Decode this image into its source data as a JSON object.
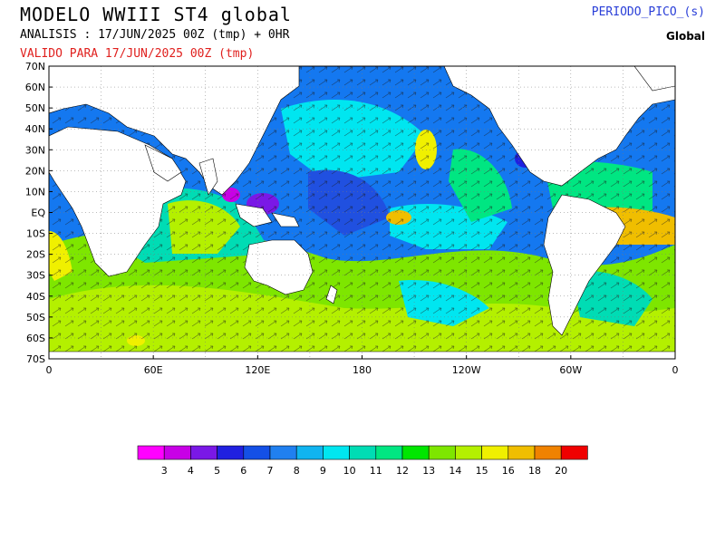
{
  "header": {
    "title": "MODELO WWIII ST4 global",
    "analysis": "ANALISIS : 17/JUN/2025 00Z  (tmp) + 0HR",
    "valid": "VALIDO PARA  17/JUN/2025 00Z  (tmp)",
    "variable": "PERIODO_PICO_(s)",
    "region": "Global"
  },
  "map": {
    "lat_labels": [
      "70N",
      "60N",
      "50N",
      "40N",
      "30N",
      "20N",
      "10N",
      "EQ",
      "10S",
      "20S",
      "30S",
      "40S",
      "50S",
      "60S",
      "70S"
    ],
    "lon_labels": [
      "0",
      "60E",
      "120E",
      "180",
      "120W",
      "60W",
      "0"
    ]
  },
  "colorbar": {
    "colors": [
      "#ff00ff",
      "#c800e6",
      "#7a18e6",
      "#2020e0",
      "#1450e6",
      "#2080f0",
      "#10b4f0",
      "#00e6f0",
      "#00dcb4",
      "#00e682",
      "#00e600",
      "#7ee600",
      "#b4f000",
      "#f0f000",
      "#f0be00",
      "#f08200",
      "#f00000"
    ],
    "labels": [
      "3",
      "4",
      "5",
      "6",
      "7",
      "8",
      "9",
      "10",
      "11",
      "12",
      "13",
      "14",
      "15",
      "16",
      "18",
      "20"
    ]
  }
}
